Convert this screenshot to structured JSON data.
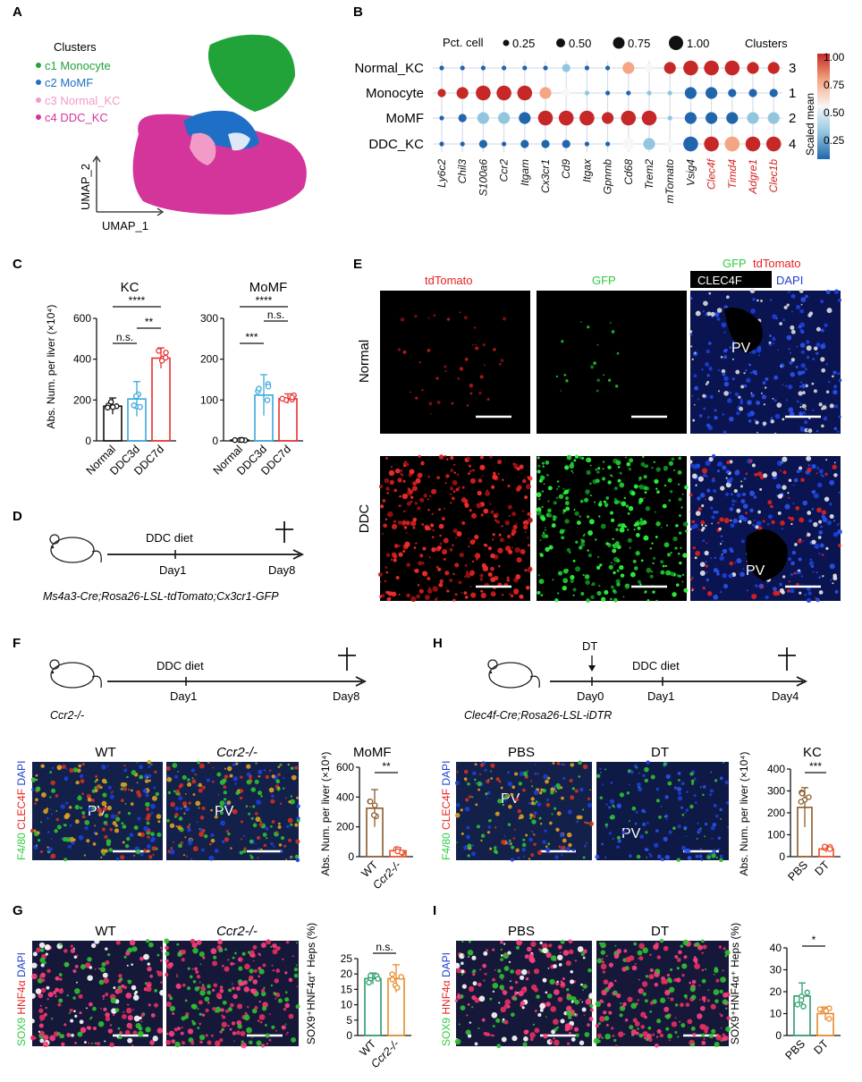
{
  "panel_letters": [
    "A",
    "B",
    "C",
    "D",
    "E",
    "F",
    "G",
    "H",
    "I"
  ],
  "panelA": {
    "legend_title": "Clusters",
    "clusters": [
      {
        "label": "c1 Monocyte",
        "color": "#22a33a"
      },
      {
        "label": "c2 MoMF",
        "color": "#1f6fc6"
      },
      {
        "label": "c3 Normal_KC",
        "color": "#f29ac8"
      },
      {
        "label": "c4 DDC_KC",
        "color": "#d4359b"
      }
    ],
    "xaxis": "UMAP_1",
    "yaxis": "UMAP_2"
  },
  "panelB": {
    "pct_title": "Pct. cell",
    "size_legend": [
      "0.25",
      "0.50",
      "0.75",
      "1.00"
    ],
    "clusters_title": "Clusters",
    "rows": [
      "Normal_KC",
      "Monocyte",
      "MoMF",
      "DDC_KC"
    ],
    "cluster_ids": [
      "3",
      "1",
      "2",
      "4"
    ],
    "genes": [
      "Ly6c2",
      "Chil3",
      "S100a6",
      "Ccr2",
      "Itgam",
      "Cx3cr1",
      "Cd9",
      "Itgax",
      "Gpnmb",
      "Cd68",
      "Trem2",
      "mTomato",
      "Vsig4",
      "Clec4f",
      "Timd4",
      "Adgre1",
      "Clec1b"
    ],
    "red_genes": [
      "Clec4f",
      "Timd4",
      "Adgre1",
      "Clec1b"
    ],
    "colorbar_title": "Scaled mean",
    "colorbar_ticks": [
      "1.00",
      "0.75",
      "0.50",
      "0.25"
    ]
  },
  "panelC": {
    "kc": {
      "title": "KC",
      "yticks": [
        "600",
        "400",
        "200",
        "0"
      ],
      "sig": [
        "****",
        "n.s.",
        "**"
      ]
    },
    "momf": {
      "title": "MoMF",
      "yticks": [
        "300",
        "200",
        "100",
        "0"
      ],
      "sig": [
        "****",
        "***",
        "n.s."
      ]
    },
    "ylabel": "Abs. Num. per liver (×10⁴)",
    "groups": [
      "Normal",
      "DDC3d",
      "DDC7d"
    ]
  },
  "panelD": {
    "diet": "DDC diet",
    "day1": "Day1",
    "day8": "Day8",
    "genotype": "Ms4a3-Cre;Rosa26-LSL-tdTomato;Cx3cr1-GFP"
  },
  "panelE": {
    "col_tdtomato": "tdTomato",
    "col_gfp": "GFP",
    "merge_gfp": "GFP",
    "merge_tdtomato": "tdTomato",
    "merge_clec4f": "CLEC4F",
    "merge_dapi": "DAPI",
    "row_normal": "Normal",
    "row_ddc": "DDC",
    "pv": "PV"
  },
  "panelF": {
    "diet": "DDC diet",
    "day1": "Day1",
    "day8": "Day8",
    "genotype": "Ccr2-/-",
    "img_wt": "WT",
    "img_ko": "Ccr2-/-",
    "stain_f480": "F4/80",
    "stain_clec4f": "CLEC4F",
    "stain_dapi": "DAPI",
    "pv": "PV",
    "chart_title": "MoMF",
    "ylabel": "Abs. Num. per liver (×10⁴)",
    "sig": "**",
    "yticks": [
      "600",
      "400",
      "200",
      "0"
    ],
    "xcats": [
      "WT",
      "Ccr2-/-"
    ]
  },
  "panelG": {
    "img_wt": "WT",
    "img_ko": "Ccr2-/-",
    "stain_sox9": "SOX9",
    "stain_hnf4a": "HNF4α",
    "stain_dapi": "DAPI",
    "ylabel": "SOX9⁺HNF4α⁺ Heps (%)",
    "sig": "n.s.",
    "yticks": [
      "25",
      "20",
      "15",
      "10",
      "5",
      "0"
    ],
    "xcats": [
      "WT",
      "Ccr2-/-"
    ]
  },
  "panelH": {
    "dt": "DT",
    "diet": "DDC diet",
    "day0": "Day0",
    "day1": "Day1",
    "day4": "Day4",
    "genotype": "Clec4f-Cre;Rosa26-LSL-iDTR",
    "img_pbs": "PBS",
    "img_dt": "DT",
    "stain_f480": "F4/80",
    "stain_clec4f": "CLEC4F",
    "stain_dapi": "DAPI",
    "pv": "PV",
    "chart_title": "KC",
    "ylabel": "Abs. Num. per liver (×10⁴)",
    "sig": "***",
    "yticks": [
      "400",
      "300",
      "200",
      "100",
      "0"
    ],
    "xcats": [
      "PBS",
      "DT"
    ]
  },
  "panelI": {
    "img_pbs": "PBS",
    "img_dt": "DT",
    "stain_sox9": "SOX9",
    "stain_hnf4a": "HNF4α",
    "stain_dapi": "DAPI",
    "ylabel": "SOX9⁺HNF4α⁺ Heps (%)",
    "sig": "*",
    "yticks": [
      "40",
      "30",
      "20",
      "10",
      "0"
    ],
    "xcats": [
      "PBS",
      "DT"
    ]
  },
  "chart_data": [
    {
      "type": "bar",
      "panel": "C-KC",
      "categories": [
        "Normal",
        "DDC3d",
        "DDC7d"
      ],
      "values": [
        170,
        205,
        405
      ],
      "errors": [
        40,
        85,
        50
      ],
      "colors": [
        "#111111",
        "#3aa7dd",
        "#e83030"
      ],
      "ylim": [
        0,
        600
      ],
      "title": "KC"
    },
    {
      "type": "bar",
      "panel": "C-MoMF",
      "categories": [
        "Normal",
        "DDC3d",
        "DDC7d"
      ],
      "values": [
        2,
        112,
        103
      ],
      "errors": [
        1,
        50,
        12
      ],
      "colors": [
        "#111111",
        "#3aa7dd",
        "#e83030"
      ],
      "ylim": [
        0,
        300
      ],
      "title": "MoMF"
    },
    {
      "type": "bar",
      "panel": "F",
      "categories": [
        "WT",
        "Ccr2-/-"
      ],
      "values": [
        325,
        40
      ],
      "errors": [
        125,
        20
      ],
      "colors": [
        "#8a5a2b",
        "#e8502a"
      ],
      "ylim": [
        0,
        600
      ],
      "title": "MoMF"
    },
    {
      "type": "bar",
      "panel": "G",
      "categories": [
        "WT",
        "Ccr2-/-"
      ],
      "values": [
        18.5,
        18.5
      ],
      "errors": [
        1.8,
        4.5
      ],
      "colors": [
        "#2a9d6a",
        "#e88a2a"
      ],
      "ylim": [
        0,
        25
      ]
    },
    {
      "type": "bar",
      "panel": "H",
      "categories": [
        "PBS",
        "DT"
      ],
      "values": [
        225,
        35
      ],
      "errors": [
        90,
        15
      ],
      "colors": [
        "#8a5a2b",
        "#e8502a"
      ],
      "ylim": [
        0,
        400
      ],
      "title": "KC"
    },
    {
      "type": "bar",
      "panel": "I",
      "categories": [
        "PBS",
        "DT"
      ],
      "values": [
        18,
        10
      ],
      "errors": [
        6,
        3
      ],
      "colors": [
        "#2a9d6a",
        "#e88a2a"
      ],
      "ylim": [
        0,
        40
      ]
    }
  ]
}
